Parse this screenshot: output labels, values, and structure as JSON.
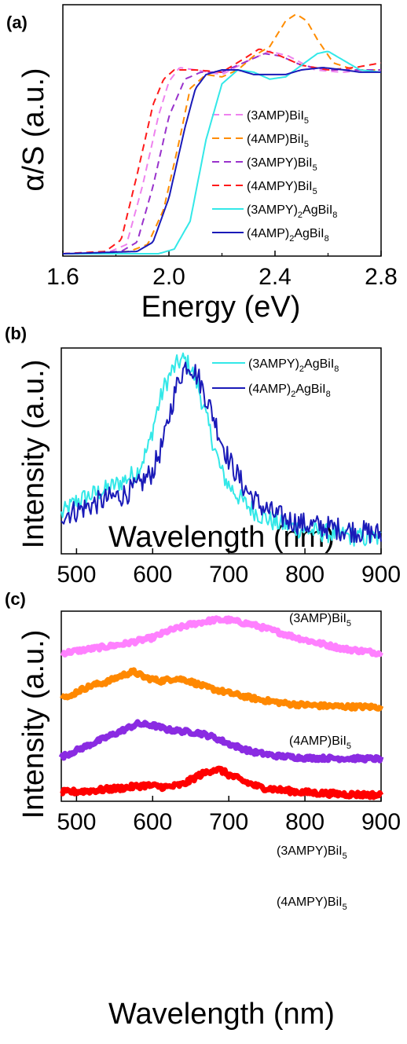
{
  "chart_data": [
    {
      "panel_label": "(a)",
      "type": "line",
      "xlabel": "Energy (eV)",
      "ylabel": "α/S (a.u.)",
      "xlim": [
        1.6,
        2.8
      ],
      "ylim": [
        0,
        1.08
      ],
      "xticks": [
        1.6,
        2.0,
        2.4,
        2.8
      ],
      "xtick_labels": [
        "1.6",
        "2.0",
        "2.4",
        "2.8"
      ],
      "grid": false,
      "legend_position": "lower-right",
      "series": [
        {
          "name": "(3AMP)BiI",
          "sub": "5",
          "color": "#ee82ee",
          "dash": true,
          "x": [
            1.6,
            1.78,
            1.84,
            1.9,
            1.96,
            2.0,
            2.04,
            2.1,
            2.2,
            2.3,
            2.38,
            2.45,
            2.55,
            2.65,
            2.8
          ],
          "y": [
            0.01,
            0.02,
            0.05,
            0.3,
            0.6,
            0.75,
            0.81,
            0.8,
            0.78,
            0.84,
            0.88,
            0.86,
            0.8,
            0.79,
            0.8
          ]
        },
        {
          "name": "(4AMP)BiI",
          "sub": "5",
          "color": "#ff8c00",
          "dash": true,
          "x": [
            1.6,
            1.85,
            1.92,
            1.98,
            2.04,
            2.08,
            2.14,
            2.2,
            2.26,
            2.32,
            2.38,
            2.44,
            2.48,
            2.52,
            2.56,
            2.62,
            2.7,
            2.8
          ],
          "y": [
            0.01,
            0.02,
            0.05,
            0.2,
            0.5,
            0.72,
            0.78,
            0.77,
            0.8,
            0.86,
            0.9,
            1.01,
            1.04,
            1.01,
            0.93,
            0.83,
            0.8,
            0.8
          ]
        },
        {
          "name": "(3AMPY)BiI",
          "sub": "5",
          "color": "#9932cc",
          "dash": true,
          "x": [
            1.6,
            1.82,
            1.88,
            1.94,
            2.0,
            2.06,
            2.12,
            2.2,
            2.28,
            2.36,
            2.42,
            2.5,
            2.6,
            2.7,
            2.8
          ],
          "y": [
            0.01,
            0.02,
            0.06,
            0.3,
            0.6,
            0.76,
            0.79,
            0.79,
            0.83,
            0.87,
            0.86,
            0.82,
            0.8,
            0.8,
            0.8
          ]
        },
        {
          "name": "(4AMPY)BiI",
          "sub": "5",
          "color": "#ff1a1a",
          "dash": true,
          "x": [
            1.6,
            1.76,
            1.82,
            1.88,
            1.94,
            1.98,
            2.02,
            2.1,
            2.2,
            2.3,
            2.34,
            2.4,
            2.5,
            2.6,
            2.7,
            2.8
          ],
          "y": [
            0.01,
            0.02,
            0.07,
            0.35,
            0.65,
            0.76,
            0.8,
            0.8,
            0.79,
            0.86,
            0.89,
            0.87,
            0.82,
            0.8,
            0.81,
            0.83
          ]
        },
        {
          "name": "(3AMPY)",
          "sub": "2",
          "suffix": "AgBiI",
          "sub2": "8",
          "color": "#33e8e8",
          "dash": false,
          "x": [
            1.6,
            1.96,
            2.02,
            2.08,
            2.14,
            2.2,
            2.26,
            2.32,
            2.38,
            2.44,
            2.5,
            2.56,
            2.6,
            2.66,
            2.72,
            2.8
          ],
          "y": [
            0.01,
            0.01,
            0.03,
            0.15,
            0.5,
            0.74,
            0.8,
            0.79,
            0.76,
            0.77,
            0.82,
            0.87,
            0.88,
            0.84,
            0.8,
            0.79
          ]
        },
        {
          "name": "(4AMP)",
          "sub": "2",
          "suffix": "AgBiI",
          "sub2": "8",
          "color": "#1a1ab8",
          "dash": false,
          "x": [
            1.6,
            1.88,
            1.94,
            2.0,
            2.06,
            2.1,
            2.14,
            2.2,
            2.26,
            2.32,
            2.38,
            2.44,
            2.5,
            2.58,
            2.66,
            2.72,
            2.8
          ],
          "y": [
            0.01,
            0.02,
            0.06,
            0.25,
            0.55,
            0.72,
            0.78,
            0.8,
            0.8,
            0.78,
            0.78,
            0.78,
            0.8,
            0.81,
            0.8,
            0.79,
            0.79
          ]
        }
      ]
    },
    {
      "panel_label": "(b)",
      "type": "line",
      "xlabel": "Wavelength (nm)",
      "ylabel": "Intensity (a.u.)",
      "xlim": [
        480,
        900
      ],
      "ylim": [
        0,
        1.05
      ],
      "xticks": [
        500,
        600,
        700,
        800,
        900
      ],
      "xtick_labels": [
        "500",
        "600",
        "700",
        "800",
        "900"
      ],
      "grid": false,
      "legend_position": "top-right",
      "series": [
        {
          "name": "(3AMPY)",
          "sub": "2",
          "suffix": "AgBiI",
          "sub2": "8",
          "color": "#33e8e8",
          "x": [
            480,
            500,
            520,
            540,
            560,
            580,
            595,
            605,
            615,
            625,
            635,
            642,
            650,
            660,
            670,
            680,
            690,
            700,
            720,
            740,
            760,
            780,
            800,
            820,
            840,
            860,
            880,
            900
          ],
          "y": [
            0.2,
            0.27,
            0.3,
            0.33,
            0.37,
            0.42,
            0.55,
            0.72,
            0.85,
            0.93,
            0.98,
            0.99,
            0.95,
            0.85,
            0.7,
            0.56,
            0.42,
            0.35,
            0.26,
            0.2,
            0.16,
            0.14,
            0.12,
            0.11,
            0.1,
            0.09,
            0.08,
            0.08
          ],
          "noise": 0.05
        },
        {
          "name": "(4AMP)",
          "sub": "2",
          "suffix": "AgBiI",
          "sub2": "8",
          "color": "#1a1ab8",
          "x": [
            480,
            500,
            520,
            540,
            560,
            580,
            600,
            615,
            625,
            635,
            645,
            650,
            660,
            670,
            680,
            690,
            700,
            720,
            740,
            760,
            780,
            800,
            820,
            840,
            860,
            880,
            900
          ],
          "y": [
            0.2,
            0.22,
            0.25,
            0.28,
            0.3,
            0.34,
            0.42,
            0.58,
            0.76,
            0.9,
            0.97,
            0.96,
            0.9,
            0.8,
            0.7,
            0.58,
            0.48,
            0.34,
            0.25,
            0.2,
            0.17,
            0.15,
            0.14,
            0.13,
            0.12,
            0.11,
            0.1
          ],
          "noise": 0.06
        }
      ]
    },
    {
      "panel_label": "(c)",
      "type": "line",
      "xlabel": "Wavelength (nm)",
      "ylabel": "Intensity (a.u.)",
      "xlim": [
        480,
        900
      ],
      "ylim": [
        0,
        4.3
      ],
      "xticks": [
        500,
        600,
        700,
        800,
        900
      ],
      "xtick_labels": [
        "500",
        "600",
        "700",
        "800",
        "900"
      ],
      "grid": false,
      "legend_position": "labels on curves",
      "series": [
        {
          "name": "(3AMP)BiI",
          "sub": "5",
          "color": "#ff80ff",
          "x": [
            480,
            520,
            560,
            600,
            620,
            650,
            680,
            700,
            730,
            760,
            800,
            850,
            900
          ],
          "y": [
            3.35,
            3.45,
            3.55,
            3.7,
            3.85,
            4.0,
            4.1,
            4.1,
            4.0,
            3.85,
            3.65,
            3.45,
            3.35
          ],
          "noise": 0.05
        },
        {
          "name": "(4AMP)BiI",
          "sub": "5",
          "color": "#ff8800",
          "x": [
            480,
            490,
            500,
            520,
            540,
            560,
            575,
            590,
            610,
            630,
            645,
            670,
            700,
            740,
            780,
            820,
            860,
            900
          ],
          "y": [
            2.45,
            2.33,
            2.48,
            2.62,
            2.7,
            2.85,
            2.93,
            2.8,
            2.72,
            2.78,
            2.74,
            2.58,
            2.45,
            2.3,
            2.2,
            2.16,
            2.14,
            2.13
          ],
          "noise": 0.05
        },
        {
          "name": "(3AMPY)BiI",
          "sub": "5",
          "color": "#8a2be2",
          "x": [
            480,
            500,
            520,
            540,
            560,
            580,
            600,
            620,
            640,
            660,
            680,
            700,
            730,
            760,
            800,
            850,
            900
          ],
          "y": [
            1.0,
            1.15,
            1.3,
            1.45,
            1.6,
            1.75,
            1.72,
            1.62,
            1.58,
            1.55,
            1.45,
            1.3,
            1.12,
            1.03,
            0.98,
            0.97,
            0.96
          ],
          "noise": 0.05
        },
        {
          "name": "(4AMPY)BiI",
          "sub": "5",
          "color": "#ff0000",
          "x": [
            480,
            520,
            560,
            590,
            620,
            640,
            660,
            680,
            690,
            700,
            720,
            740,
            770,
            800,
            850,
            900
          ],
          "y": [
            0.2,
            0.24,
            0.3,
            0.36,
            0.32,
            0.38,
            0.58,
            0.72,
            0.7,
            0.6,
            0.45,
            0.32,
            0.25,
            0.2,
            0.16,
            0.14
          ],
          "noise": 0.06
        }
      ]
    }
  ]
}
